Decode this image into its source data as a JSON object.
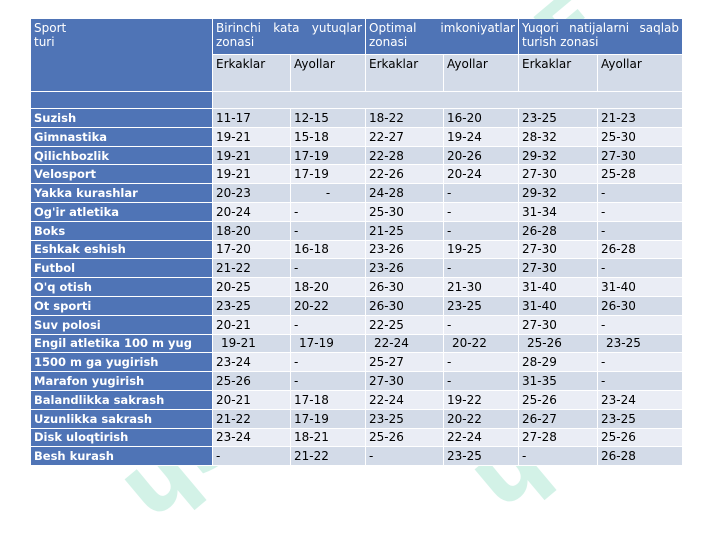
{
  "header": {
    "sport_col": "Sport turi",
    "groups": [
      "Birinchi kata yutuqlar zonasi",
      "Optimal imkoniyatlar zonasi",
      "Yuqori natijalarni saqlab turish zonasi"
    ],
    "sub": [
      "Erkaklar",
      "Ayollar",
      "Erkaklar",
      "Ayollar",
      "Erkaklar",
      "Ayollar"
    ]
  },
  "rows": [
    {
      "name": "Suzish",
      "v": [
        "11-17",
        "12-15",
        "18-22",
        "16-20",
        "23-25",
        "21-23"
      ]
    },
    {
      "name": "Gimnastika",
      "v": [
        "19-21",
        "15-18",
        "22-27",
        "19-24",
        "28-32",
        "25-30"
      ]
    },
    {
      "name": "Qilichbozlik",
      "v": [
        "19-21",
        "17-19",
        "22-28",
        "20-26",
        "29-32",
        "27-30"
      ]
    },
    {
      "name": "Velosport",
      "v": [
        "19-21",
        "17-19",
        "22-26",
        "20-24",
        "27-30",
        "25-28"
      ]
    },
    {
      "name": "Yakka kurashlar",
      "v": [
        "20-23",
        "-",
        "24-28",
        "-",
        "29-32",
        "-"
      ]
    },
    {
      "name": "Og'ir atletika",
      "v": [
        "20-24",
        "-",
        "25-30",
        "-",
        "31-34",
        "-"
      ]
    },
    {
      "name": "Boks",
      "v": [
        "18-20",
        "-",
        "21-25",
        "-",
        "26-28",
        "-"
      ]
    },
    {
      "name": "Eshkak eshish",
      "v": [
        "17-20",
        "16-18",
        "23-26",
        "19-25",
        "27-30",
        "26-28"
      ]
    },
    {
      "name": "Futbol",
      "v": [
        "21-22",
        "-",
        "23-26",
        "-",
        "27-30",
        "-"
      ]
    },
    {
      "name": "O'q otish",
      "v": [
        "20-25",
        "18-20",
        "26-30",
        "21-30",
        "31-40",
        "31-40"
      ]
    },
    {
      "name": "Ot sporti",
      "v": [
        "23-25",
        "20-22",
        "26-30",
        "23-25",
        "31-40",
        "26-30"
      ]
    },
    {
      "name": "Suv polosi",
      "v": [
        "20-21",
        "-",
        "22-25",
        "-",
        "27-30",
        "-"
      ]
    },
    {
      "name": "Engil atletika 100 m yug",
      "v": [
        "19-21",
        "17-19",
        "22-24",
        "20-22",
        "25-26",
        "23-25"
      ]
    },
    {
      "name": "1500 m ga yugirish",
      "v": [
        "23-24",
        "-",
        "25-27",
        "-",
        "28-29",
        "-"
      ]
    },
    {
      "name": "Marafon yugirish",
      "v": [
        "25-26",
        "-",
        "27-30",
        "-",
        "31-35",
        "-"
      ]
    },
    {
      "name": "Balandlikka sakrash",
      "v": [
        "20-21",
        "17-18",
        "22-24",
        "19-22",
        "25-26",
        "23-24"
      ]
    },
    {
      "name": "Uzunlikka sakrash",
      "v": [
        "21-22",
        "17-19",
        "23-25",
        "20-22",
        "26-27",
        "23-25"
      ]
    },
    {
      "name": "Disk uloqtirish",
      "v": [
        "23-24",
        "18-21",
        "25-26",
        "22-24",
        "27-28",
        "25-26"
      ]
    },
    {
      "name": "Besh kurash",
      "v": [
        "-",
        "21-22",
        "-",
        "23-25",
        "-",
        "26-28"
      ]
    }
  ]
}
